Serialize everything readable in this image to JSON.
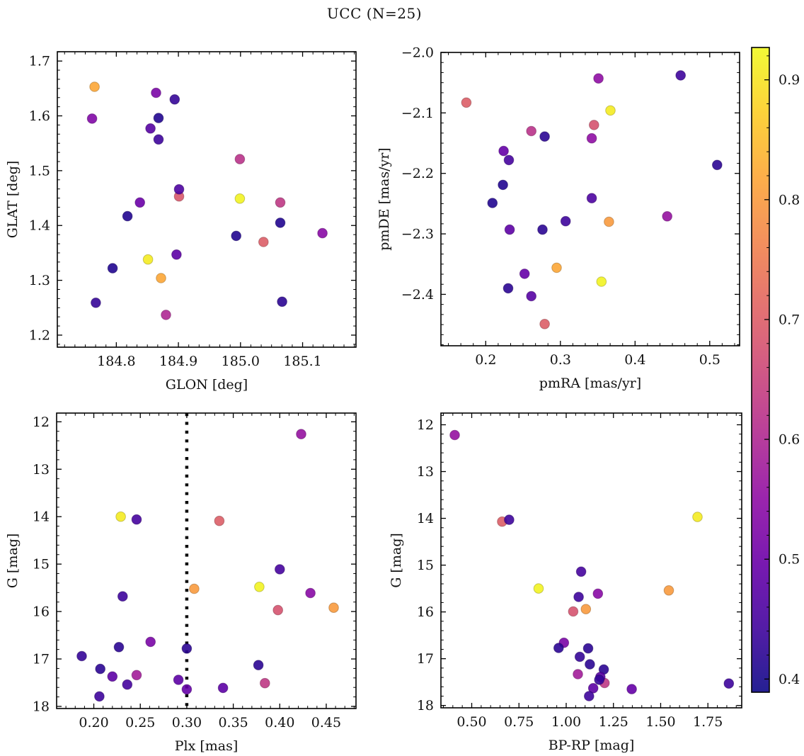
{
  "title": "UCC (N=25)",
  "chart_data": {
    "type": "scatter",
    "title": "UCC (N=25)",
    "n_points": 25,
    "colormap": "plasma",
    "marker_opacity": 0.9,
    "colorbar": {
      "vmin": 0.389,
      "vmax": 0.927,
      "tick_values": [
        0.4,
        0.5,
        0.6,
        0.7,
        0.8,
        0.9
      ],
      "tick_labels": [
        "0.4",
        "0.5",
        "0.6",
        "0.7",
        "0.8",
        "0.9"
      ],
      "minor_step": 0.02,
      "stops": [
        [
          0.0,
          "#0d0887"
        ],
        [
          0.1,
          "#41049d"
        ],
        [
          0.2,
          "#6a00a8"
        ],
        [
          0.3,
          "#8f0da4"
        ],
        [
          0.4,
          "#b12a90"
        ],
        [
          0.5,
          "#cc4778"
        ],
        [
          0.6,
          "#e16462"
        ],
        [
          0.7,
          "#f2844b"
        ],
        [
          0.8,
          "#fca636"
        ],
        [
          0.9,
          "#fcce25"
        ],
        [
          1.0,
          "#f0f921"
        ]
      ]
    },
    "panels": [
      {
        "key": "glon-glat",
        "xlabel": "GLON [deg]",
        "ylabel": "GLAT [deg]",
        "xlim": [
          184.705,
          185.186
        ],
        "ylim_bottom_top": [
          1.178,
          1.717
        ],
        "xtick_values": [
          184.8,
          184.9,
          185.0,
          185.1
        ],
        "xtick_labels": [
          "184.8",
          "184.9",
          "185.0",
          "185.1"
        ],
        "ytick_values": [
          1.2,
          1.3,
          1.4,
          1.5,
          1.6,
          1.7
        ],
        "ytick_labels": [
          "1.2",
          "1.3",
          "1.4",
          "1.5",
          "1.6",
          "1.7"
        ],
        "x_minor_step": 0.0166667,
        "y_minor_step": 0.0166667,
        "points": [
          [
            184.765,
            1.653,
            0.82
          ],
          [
            184.761,
            1.595,
            0.53
          ],
          [
            184.864,
            1.642,
            0.52
          ],
          [
            184.894,
            1.63,
            0.43
          ],
          [
            184.868,
            1.596,
            0.41
          ],
          [
            184.855,
            1.577,
            0.47
          ],
          [
            184.868,
            1.557,
            0.44
          ],
          [
            184.999,
            1.521,
            0.62
          ],
          [
            184.901,
            1.453,
            0.69
          ],
          [
            184.901,
            1.466,
            0.46
          ],
          [
            184.838,
            1.442,
            0.5
          ],
          [
            184.999,
            1.449,
            0.92
          ],
          [
            185.064,
            1.442,
            0.63
          ],
          [
            184.818,
            1.417,
            0.41
          ],
          [
            185.064,
            1.405,
            0.41
          ],
          [
            184.993,
            1.381,
            0.41
          ],
          [
            185.037,
            1.37,
            0.7
          ],
          [
            185.132,
            1.386,
            0.54
          ],
          [
            184.851,
            1.338,
            0.91
          ],
          [
            184.897,
            1.347,
            0.48
          ],
          [
            184.794,
            1.322,
            0.41
          ],
          [
            184.872,
            1.304,
            0.82
          ],
          [
            184.767,
            1.259,
            0.43
          ],
          [
            185.067,
            1.261,
            0.42
          ],
          [
            184.88,
            1.237,
            0.6
          ]
        ]
      },
      {
        "key": "pmra-pmde",
        "xlabel": "pmRA [mas/yr]",
        "ylabel": "pmDE [mas/yr]",
        "xlim": [
          0.14,
          0.54
        ],
        "ylim_bottom_top": [
          -2.485,
          -2.0
        ],
        "xtick_values": [
          0.2,
          0.3,
          0.4,
          0.5
        ],
        "xtick_labels": [
          "0.2",
          "0.3",
          "0.4",
          "0.5"
        ],
        "ytick_values": [
          -2.0,
          -2.1,
          -2.2,
          -2.3,
          -2.4
        ],
        "ytick_labels": [
          "−2.0",
          "−2.1",
          "−2.2",
          "−2.3",
          "−2.4"
        ],
        "x_minor_step": 0.0166667,
        "y_minor_step": 0.0166667,
        "points": [
          [
            0.351,
            -2.043,
            0.55
          ],
          [
            0.461,
            -2.038,
            0.44
          ],
          [
            0.174,
            -2.083,
            0.7
          ],
          [
            0.367,
            -2.096,
            0.91
          ],
          [
            0.345,
            -2.12,
            0.68
          ],
          [
            0.261,
            -2.13,
            0.62
          ],
          [
            0.279,
            -2.139,
            0.42
          ],
          [
            0.342,
            -2.142,
            0.55
          ],
          [
            0.224,
            -2.163,
            0.49
          ],
          [
            0.231,
            -2.178,
            0.45
          ],
          [
            0.51,
            -2.186,
            0.42
          ],
          [
            0.223,
            -2.219,
            0.41
          ],
          [
            0.209,
            -2.249,
            0.41
          ],
          [
            0.342,
            -2.241,
            0.46
          ],
          [
            0.232,
            -2.293,
            0.48
          ],
          [
            0.276,
            -2.293,
            0.42
          ],
          [
            0.307,
            -2.279,
            0.44
          ],
          [
            0.365,
            -2.28,
            0.8
          ],
          [
            0.443,
            -2.271,
            0.56
          ],
          [
            0.295,
            -2.356,
            0.82
          ],
          [
            0.252,
            -2.366,
            0.49
          ],
          [
            0.355,
            -2.379,
            0.92
          ],
          [
            0.23,
            -2.39,
            0.42
          ],
          [
            0.261,
            -2.403,
            0.47
          ],
          [
            0.279,
            -2.449,
            0.7
          ]
        ]
      },
      {
        "key": "plx-g",
        "xlabel": "Plx [mas]",
        "ylabel": "G [mag]",
        "xlim": [
          0.16,
          0.482
        ],
        "ylim_bottom_top": [
          18.045,
          11.816
        ],
        "xtick_values": [
          0.2,
          0.25,
          0.3,
          0.35,
          0.4,
          0.45
        ],
        "xtick_labels": [
          "0.20",
          "0.25",
          "0.30",
          "0.35",
          "0.40",
          "0.45"
        ],
        "ytick_values": [
          12,
          13,
          14,
          15,
          16,
          17,
          18
        ],
        "ytick_labels": [
          "12",
          "13",
          "14",
          "15",
          "16",
          "17",
          "18"
        ],
        "x_minor_step": 0.01,
        "y_minor_step": 0.2,
        "vline": {
          "x": 0.3
        },
        "points": [
          [
            0.423,
            12.26,
            0.56
          ],
          [
            0.229,
            14.0,
            0.91
          ],
          [
            0.246,
            14.06,
            0.45
          ],
          [
            0.335,
            14.09,
            0.7
          ],
          [
            0.4,
            15.11,
            0.45
          ],
          [
            0.308,
            15.52,
            0.8
          ],
          [
            0.378,
            15.48,
            0.92
          ],
          [
            0.433,
            15.61,
            0.54
          ],
          [
            0.231,
            15.68,
            0.44
          ],
          [
            0.398,
            15.97,
            0.68
          ],
          [
            0.458,
            15.92,
            0.8
          ],
          [
            0.261,
            16.64,
            0.52
          ],
          [
            0.227,
            16.75,
            0.42
          ],
          [
            0.3,
            16.78,
            0.42
          ],
          [
            0.187,
            16.94,
            0.43
          ],
          [
            0.377,
            17.13,
            0.42
          ],
          [
            0.207,
            17.21,
            0.42
          ],
          [
            0.246,
            17.34,
            0.58
          ],
          [
            0.22,
            17.37,
            0.48
          ],
          [
            0.291,
            17.44,
            0.48
          ],
          [
            0.236,
            17.54,
            0.45
          ],
          [
            0.384,
            17.51,
            0.63
          ],
          [
            0.339,
            17.61,
            0.48
          ],
          [
            0.3,
            17.64,
            0.49
          ],
          [
            0.206,
            17.79,
            0.44
          ]
        ]
      },
      {
        "key": "bprp-g",
        "xlabel": "BP-RP [mag]",
        "ylabel": "G [mag]",
        "xlim": [
          0.337,
          1.929
        ],
        "ylim_bottom_top": [
          18.05,
          11.75
        ],
        "xtick_values": [
          0.5,
          0.75,
          1.0,
          1.25,
          1.5,
          1.75
        ],
        "xtick_labels": [
          "0.50",
          "0.75",
          "1.00",
          "1.25",
          "1.50",
          "1.75"
        ],
        "ytick_values": [
          12,
          13,
          14,
          15,
          16,
          17,
          18
        ],
        "ytick_labels": [
          "12",
          "13",
          "14",
          "15",
          "16",
          "17",
          "18"
        ],
        "x_minor_step": 0.05,
        "y_minor_step": 0.2,
        "points": [
          [
            0.41,
            12.22,
            0.56
          ],
          [
            0.661,
            14.07,
            0.7
          ],
          [
            0.698,
            14.03,
            0.44
          ],
          [
            1.695,
            13.97,
            0.91
          ],
          [
            1.079,
            15.14,
            0.45
          ],
          [
            0.854,
            15.5,
            0.92
          ],
          [
            1.066,
            15.68,
            0.44
          ],
          [
            1.168,
            15.61,
            0.54
          ],
          [
            1.037,
            15.99,
            0.68
          ],
          [
            1.104,
            15.94,
            0.8
          ],
          [
            1.543,
            15.54,
            0.8
          ],
          [
            0.988,
            16.66,
            0.52
          ],
          [
            0.96,
            16.77,
            0.42
          ],
          [
            1.116,
            16.78,
            0.42
          ],
          [
            1.072,
            16.96,
            0.43
          ],
          [
            1.125,
            17.12,
            0.42
          ],
          [
            1.199,
            17.23,
            0.42
          ],
          [
            1.062,
            17.33,
            0.58
          ],
          [
            1.203,
            17.52,
            0.63
          ],
          [
            1.181,
            17.39,
            0.47
          ],
          [
            1.175,
            17.45,
            0.43
          ],
          [
            1.143,
            17.63,
            0.48
          ],
          [
            1.347,
            17.65,
            0.49
          ],
          [
            1.121,
            17.8,
            0.44
          ],
          [
            1.861,
            17.53,
            0.44
          ]
        ]
      }
    ]
  }
}
